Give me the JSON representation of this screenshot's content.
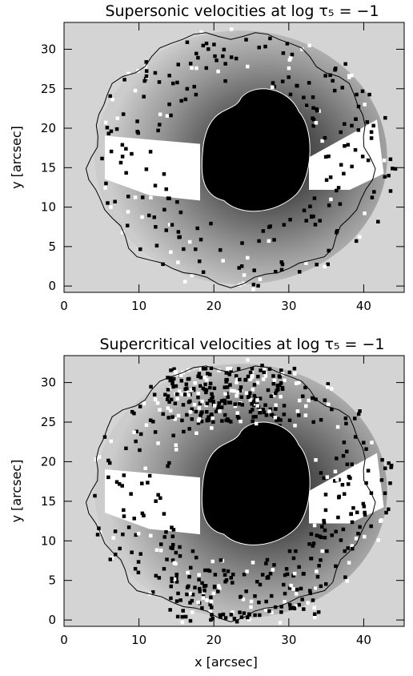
{
  "chart_data": [
    {
      "type": "image",
      "title": "Supersonic velocities at log τ₅ = −1",
      "ylabel": "y [arcsec]",
      "xlim": [
        0,
        45.4
      ],
      "ylim": [
        -0.8,
        33.4
      ],
      "xticks": [
        0,
        10,
        20,
        30,
        40
      ],
      "yticks": [
        0,
        5,
        10,
        15,
        20,
        25,
        30
      ]
    },
    {
      "type": "image",
      "title": "Supercritical velocities at log τ₅ = −1",
      "ylabel": "y [arcsec]",
      "xlabel": "x [arcsec]",
      "xlim": [
        0,
        45.4
      ],
      "ylim": [
        -0.8,
        33.4
      ],
      "xticks": [
        0,
        10,
        20,
        30,
        40
      ],
      "yticks": [
        0,
        5,
        10,
        15,
        20,
        25,
        30
      ]
    }
  ]
}
